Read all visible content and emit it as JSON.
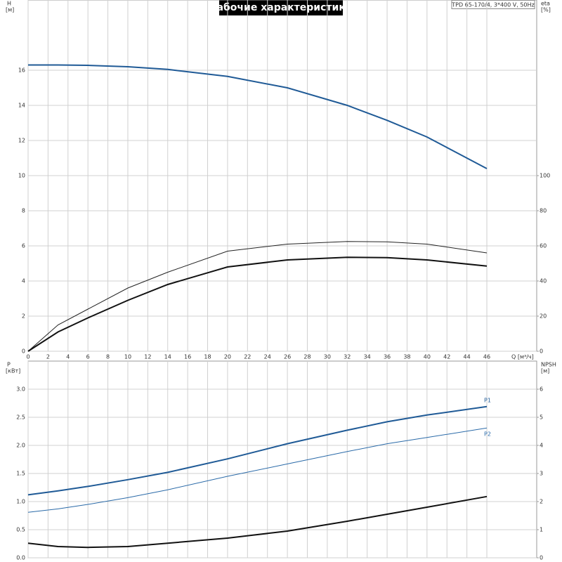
{
  "chart_data": [
    {
      "type": "line",
      "title": "Рабочие характеристики",
      "annotation": "TPD 65-170/4, 3*400 V, 50Hz",
      "ylabel": "H",
      "yunit": "[м]",
      "y2label": "eta",
      "y2unit": "[%]",
      "xlabel": "Q [м³/ч]",
      "x": [
        0,
        3,
        6,
        10,
        14,
        20,
        26,
        32,
        36,
        40,
        46
      ],
      "xlim": [
        0,
        51
      ],
      "xticks": [
        0,
        2,
        4,
        6,
        8,
        10,
        12,
        14,
        16,
        18,
        20,
        22,
        24,
        26,
        28,
        30,
        32,
        34,
        36,
        38,
        40,
        42,
        44,
        46
      ],
      "ylim": [
        0,
        20
      ],
      "yticks": [
        0,
        2,
        4,
        6,
        8,
        10,
        12,
        14,
        16
      ],
      "y2lim": [
        0,
        200
      ],
      "y2ticks": [
        0,
        20,
        40,
        60,
        80,
        100
      ],
      "grid": true,
      "xtick_labels": true,
      "series": [
        {
          "color": "#1f5a96",
          "linewidth": 2,
          "values": [
            16.3,
            16.3,
            16.28,
            16.2,
            16.05,
            15.65,
            15.0,
            14.0,
            13.15,
            12.2,
            10.4
          ]
        },
        {
          "color": "#222222",
          "linewidth": 1,
          "axis": "y2",
          "values": [
            0,
            15,
            24,
            36,
            45,
            57,
            61,
            62.5,
            62.3,
            61,
            56
          ]
        },
        {
          "color": "#111111",
          "linewidth": 2,
          "axis": "y2",
          "values": [
            0,
            11,
            19,
            29,
            38,
            48,
            52,
            53.5,
            53.3,
            52,
            48.5
          ]
        }
      ]
    },
    {
      "type": "line",
      "ylabel": "P",
      "yunit": "[кВт]",
      "y2label": "NPSH",
      "y2unit": "[м]",
      "x": [
        0,
        3,
        6,
        10,
        14,
        20,
        26,
        32,
        36,
        40,
        46
      ],
      "xlim": [
        0,
        51
      ],
      "xticks": [
        0,
        2,
        4,
        6,
        8,
        10,
        12,
        14,
        16,
        18,
        20,
        22,
        24,
        26,
        28,
        30,
        32,
        34,
        36,
        38,
        40,
        42,
        44,
        46
      ],
      "ylim": [
        0,
        3.5
      ],
      "yticks": [
        {
          "value": 0,
          "label": "0.0"
        },
        0.5,
        {
          "value": 1,
          "label": "1.0"
        },
        1.5,
        {
          "value": 2,
          "label": "2.0"
        },
        2.5,
        {
          "value": 3,
          "label": "3.0"
        }
      ],
      "y2lim": [
        0,
        7
      ],
      "y2ticks": [
        0,
        1,
        2,
        3,
        4,
        5,
        6
      ],
      "grid": true,
      "xtick_labels": false,
      "series": [
        {
          "name": "P1",
          "color": "#1f5a96",
          "linewidth": 2,
          "values": [
            1.12,
            1.19,
            1.27,
            1.39,
            1.52,
            1.76,
            2.03,
            2.27,
            2.42,
            2.54,
            2.69
          ]
        },
        {
          "name": "P2",
          "color": "#2a6aa8",
          "linewidth": 1,
          "values": [
            0.81,
            0.87,
            0.95,
            1.07,
            1.21,
            1.45,
            1.67,
            1.89,
            2.03,
            2.14,
            2.31
          ]
        },
        {
          "color": "#111111",
          "linewidth": 2,
          "axis": "y2",
          "values": [
            0.52,
            0.4,
            0.37,
            0.4,
            0.52,
            0.7,
            0.95,
            1.3,
            1.55,
            1.8,
            2.18
          ]
        }
      ]
    }
  ]
}
